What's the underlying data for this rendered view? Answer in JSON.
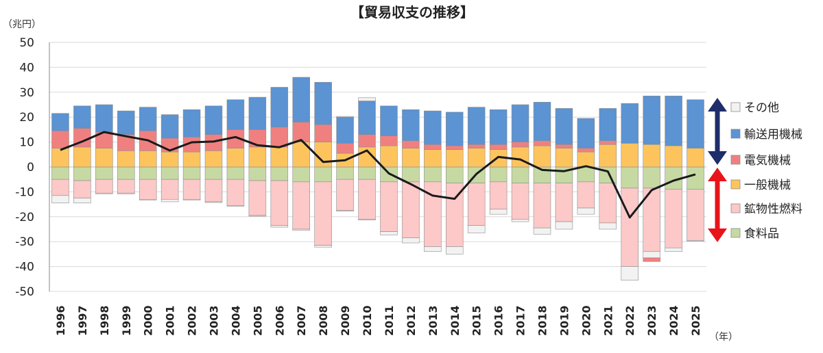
{
  "chart_data": {
    "type": "bar",
    "title": "【貿易収支の推移】",
    "ylabel": "（兆円）",
    "xlabel": "（年）",
    "ylim": [
      -50,
      50
    ],
    "yticks": [
      50,
      40,
      30,
      20,
      10,
      0,
      -10,
      -20,
      -30,
      -40,
      -50
    ],
    "categories": [
      "1996",
      "1997",
      "1998",
      "1999",
      "2000",
      "2001",
      "2002",
      "2003",
      "2004",
      "2005",
      "2006",
      "2007",
      "2008",
      "2009",
      "2010",
      "2011",
      "2012",
      "2013",
      "2014",
      "2015",
      "2016",
      "2017",
      "2018",
      "2019",
      "2020",
      "2021",
      "2022",
      "2023",
      "2024",
      "2025"
    ],
    "stacked": true,
    "series": [
      {
        "name": "食料品",
        "key": "food",
        "color": "#c6d9a3",
        "values": [
          -5,
          -5.5,
          -5,
          -5,
          -5,
          -5,
          -5,
          -5,
          -5,
          -5.5,
          -5.5,
          -6,
          -6,
          -5,
          -5,
          -6,
          -6,
          -6,
          -6.5,
          -6.5,
          -6,
          -6.5,
          -6.5,
          -6.5,
          -6,
          -6.5,
          -8.5,
          -8.5,
          -9,
          -9
        ]
      },
      {
        "name": "鉱物性燃料",
        "key": "fuel",
        "color": "#fcc8c8",
        "values": [
          -6.5,
          -7,
          -5.5,
          -5.5,
          -8,
          -8,
          -8,
          -9,
          -10.5,
          -14,
          -18,
          -19,
          -25.5,
          -12.5,
          -16,
          -20,
          -22.5,
          -26,
          -25.5,
          -17,
          -11,
          -14.5,
          -18,
          -15.5,
          -10.5,
          -16,
          -31.5,
          -25.5,
          -23.5,
          -20.5
        ]
      },
      {
        "name": "その他",
        "key": "other_neg",
        "color": "#f2f2f2",
        "values": [
          -3,
          -2,
          -0.3,
          -0.3,
          -0.3,
          -1,
          -0.3,
          -0.3,
          -0.3,
          -0.3,
          -0.7,
          -0.5,
          -0.7,
          -0.3,
          -0.3,
          -1.3,
          -2,
          -2,
          -3,
          -3,
          -2,
          -1,
          -2.5,
          -3,
          -2.5,
          -2.5,
          -5.5,
          -2.5,
          -1.5,
          -0.3
        ]
      },
      {
        "name": "電気機械",
        "key": "elec_neg",
        "color": "#f08080",
        "values": [
          0,
          0,
          0,
          0,
          0,
          0,
          0,
          0,
          0,
          0,
          0,
          0,
          0,
          0,
          0,
          0,
          0,
          0,
          0,
          0,
          0,
          0,
          0,
          0,
          0,
          0,
          0,
          -1.5,
          0,
          0
        ]
      },
      {
        "name": "一般機械",
        "key": "gen",
        "color": "#fdc45e",
        "values": [
          7.5,
          8,
          7.5,
          6.5,
          6.5,
          6,
          6,
          6.5,
          7.5,
          8,
          8,
          10,
          10,
          5.5,
          8,
          8.5,
          7.5,
          7,
          7,
          7.5,
          7,
          8,
          8.5,
          7.5,
          6,
          9,
          9.5,
          9,
          8.5,
          7.5
        ]
      },
      {
        "name": "電気機械",
        "key": "elec",
        "color": "#f08080",
        "values": [
          7,
          7.5,
          6.5,
          6.5,
          8,
          5.5,
          6,
          6.5,
          7.5,
          7,
          8,
          8,
          7,
          4,
          5,
          4,
          3,
          2,
          1.5,
          1.5,
          2,
          2,
          2,
          1.5,
          1.5,
          1.5,
          0,
          0,
          0,
          0
        ]
      },
      {
        "name": "輸送用機械",
        "key": "trans",
        "color": "#5b93d3",
        "values": [
          7,
          9,
          11,
          9.5,
          9.5,
          9.5,
          11,
          11.5,
          12,
          13,
          16,
          18,
          17,
          10.5,
          13.5,
          12,
          12.5,
          13.5,
          13.5,
          15,
          14,
          15,
          15.5,
          14.5,
          12,
          13,
          16,
          19.5,
          20,
          19.5
        ]
      },
      {
        "name": "その他",
        "key": "other_pos",
        "color": "#f2f2f2",
        "values": [
          0,
          0,
          0,
          0,
          0,
          0,
          0,
          0,
          0,
          0,
          0,
          0,
          0,
          0.3,
          1.3,
          0,
          0,
          0,
          0,
          0,
          0,
          0,
          0,
          0,
          0,
          0,
          0,
          0,
          0,
          0
        ]
      }
    ],
    "line": {
      "name": "貿易収支",
      "color": "#1a1a1a",
      "values": [
        6.8,
        10.2,
        14,
        12.3,
        10.7,
        6.6,
        9.9,
        10.2,
        12,
        8.7,
        7.9,
        10.8,
        2,
        2.7,
        6.6,
        -2.6,
        -6.9,
        -11.5,
        -12.8,
        -2.8,
        4,
        3,
        -1.2,
        -1.7,
        0.3,
        -1.8,
        -20.3,
        -9.3,
        -5.5,
        -3
      ]
    },
    "legend": [
      {
        "label": "その他",
        "color": "#f2f2f2"
      },
      {
        "label": "輸送用機械",
        "color": "#5b93d3"
      },
      {
        "label": "電気機械",
        "color": "#f08080"
      },
      {
        "label": "一般機械",
        "color": "#fdc45e"
      },
      {
        "label": "鉱物性燃料",
        "color": "#fcc8c8"
      },
      {
        "label": "食料品",
        "color": "#c6d9a3"
      }
    ],
    "legend_position": "right",
    "arrows": [
      {
        "direction": "both",
        "color": "#1f2d6b"
      },
      {
        "direction": "both",
        "color": "#e8141a"
      }
    ],
    "grid": true
  }
}
